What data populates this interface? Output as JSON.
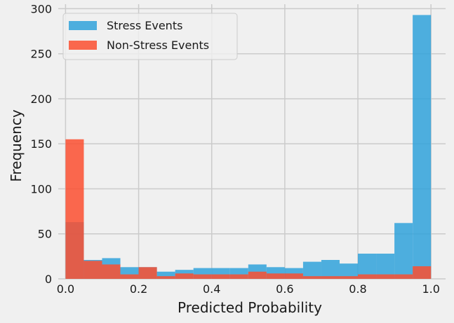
{
  "chart_data": {
    "type": "bar",
    "subtype": "overlaid-histogram",
    "title": "",
    "xlabel": "Predicted Probability",
    "ylabel": "Frequency",
    "xlim": [
      -0.02,
      1.04
    ],
    "ylim": [
      0,
      305
    ],
    "xticks": [
      0.0,
      0.2,
      0.4,
      0.6,
      0.8,
      1.0
    ],
    "xtick_labels": [
      "0.0",
      "0.2",
      "0.4",
      "0.6",
      "0.8",
      "1.0"
    ],
    "yticks": [
      0,
      50,
      100,
      150,
      200,
      250,
      300
    ],
    "ytick_labels": [
      "0",
      "50",
      "100",
      "150",
      "200",
      "250",
      "300"
    ],
    "grid": true,
    "legend_position": "top-left",
    "bin_edges": [
      0.0,
      0.05,
      0.1,
      0.15,
      0.2,
      0.25,
      0.3,
      0.35,
      0.4,
      0.45,
      0.5,
      0.55,
      0.6,
      0.65,
      0.7,
      0.75,
      0.8,
      0.85,
      0.9,
      0.95,
      1.0
    ],
    "series": [
      {
        "name": "Stress Events",
        "color": "#30a2da",
        "values": [
          63,
          21,
          23,
          13,
          13,
          8,
          10,
          12,
          12,
          12,
          16,
          13,
          12,
          19,
          21,
          17,
          28,
          28,
          62,
          293
        ]
      },
      {
        "name": "Non-Stress Events",
        "color": "#fc4f30",
        "values": [
          155,
          20,
          16,
          5,
          13,
          3,
          6,
          5,
          5,
          5,
          8,
          6,
          6,
          3,
          3,
          3,
          5,
          5,
          5,
          14
        ]
      }
    ]
  },
  "colors": {
    "background": "#ffffff",
    "plot_background": "#f0f0f0",
    "grid": "#cbcbcb"
  }
}
